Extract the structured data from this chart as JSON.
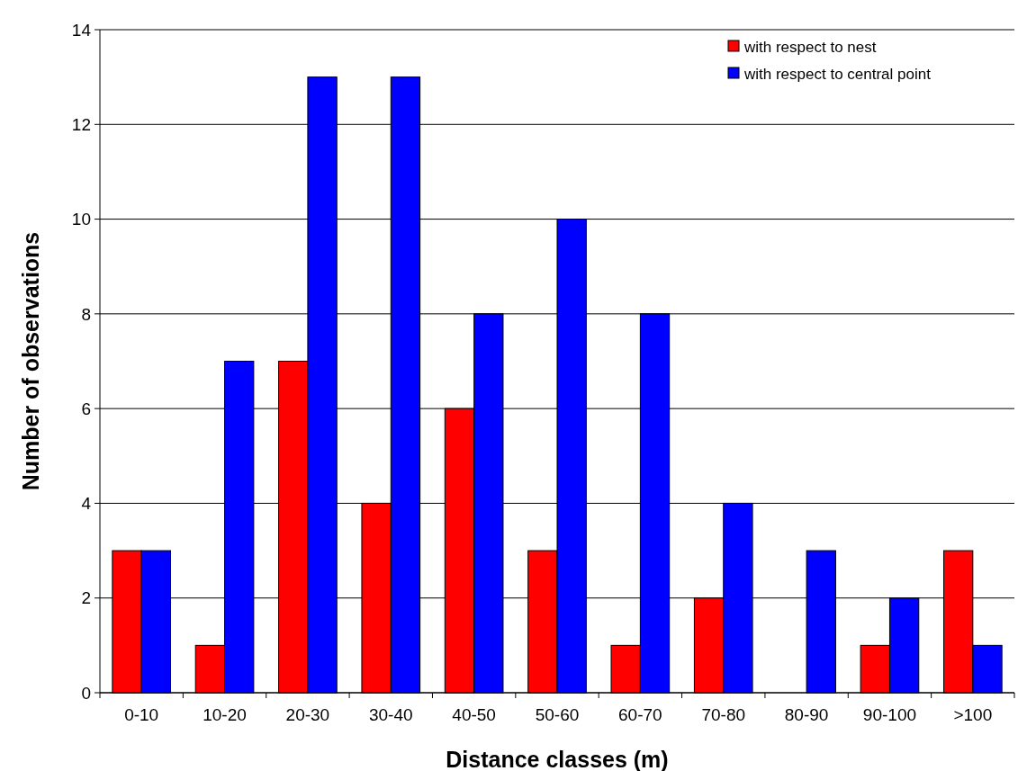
{
  "chart_data": {
    "type": "bar",
    "xlabel": "Distance classes (m)",
    "ylabel": "Number of observations",
    "categories": [
      "0-10",
      "10-20",
      "20-30",
      "30-40",
      "40-50",
      "50-60",
      "60-70",
      "70-80",
      "80-90",
      "90-100",
      ">100"
    ],
    "series": [
      {
        "name": "with respect to nest",
        "color": "#ff0000",
        "values": [
          3,
          1,
          7,
          4,
          6,
          3,
          1,
          2,
          0,
          1,
          3
        ]
      },
      {
        "name": "with respect to central point",
        "color": "#0000ff",
        "values": [
          3,
          7,
          13,
          13,
          8,
          10,
          8,
          4,
          3,
          2,
          1
        ]
      }
    ],
    "ylim": [
      0,
      14
    ],
    "yticks": [
      0,
      2,
      4,
      6,
      8,
      10,
      12,
      14
    ],
    "grid": "y",
    "legend": "top right"
  }
}
